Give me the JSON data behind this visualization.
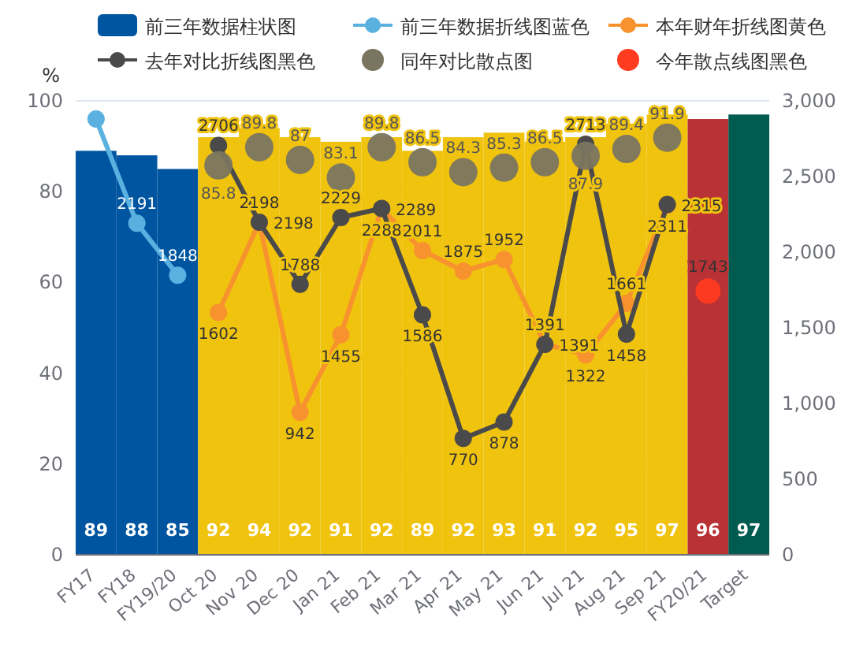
{
  "chart_data": {
    "type": "bar",
    "ylabel": "%",
    "categories": [
      "FY17",
      "FY18",
      "FY19/20",
      "Oct 20",
      "Nov 20",
      "Dec 20",
      "Jan 21",
      "Feb 21",
      "Mar 21",
      "Apr 21",
      "May 21",
      "Jun 21",
      "Jul 21",
      "Aug 21",
      "Sep 21",
      "FY20/21",
      "Target"
    ],
    "ylim": [
      0,
      100
    ],
    "yticks": [
      0,
      20,
      40,
      60,
      80,
      100
    ],
    "y2lim": [
      0,
      3000
    ],
    "y2ticks": [
      0,
      {
        "value": 500,
        "label": "500"
      },
      {
        "value": 1000,
        "label": "1,000"
      },
      {
        "value": 1500,
        "label": "1,500"
      },
      {
        "value": 2000,
        "label": "2,000"
      },
      {
        "value": 2500,
        "label": "2,500"
      },
      {
        "value": 3000,
        "label": "3,000"
      }
    ],
    "grid": "y",
    "legend": "top",
    "marker": "circle",
    "data_labels": true,
    "series": [
      {
        "name": "前三年数据柱状图",
        "color": "#0055a0",
        "colors": [
          "#0055a0",
          "#0055a0",
          "#0055a0",
          "#f0c30f",
          "#f0c30f",
          "#f0c30f",
          "#f0c30f",
          "#f0c30f",
          "#f0c30f",
          "#f0c30f",
          "#f0c30f",
          "#f0c30f",
          "#f0c30f",
          "#f0c30f",
          "#f0c30f",
          "#b83236",
          "#005c50"
        ],
        "values": [
          89,
          88,
          85,
          92,
          94,
          92,
          91,
          92,
          89,
          92,
          93,
          91,
          92,
          95,
          97,
          96,
          97
        ]
      },
      {
        "name": "前三年数据折线图蓝色",
        "type": "line",
        "axis": "y2",
        "color": "#5ab1e0",
        "values": [
          2880,
          2191,
          1848,
          null,
          null,
          null,
          null,
          null,
          null,
          null,
          null,
          null,
          null,
          null,
          null,
          null,
          null
        ],
        "value_labels": [
          null,
          "2191",
          "1848",
          null,
          null,
          null,
          null,
          null,
          null,
          null,
          null,
          null,
          null,
          null,
          null,
          null,
          null
        ]
      },
      {
        "name": "本年财年折线图黄色",
        "type": "line",
        "axis": "y2",
        "color": "#f7922e",
        "values": [
          null,
          null,
          null,
          1602,
          2198,
          942,
          1455,
          2288,
          2011,
          1875,
          1952,
          1391,
          1322,
          1661,
          2311,
          null,
          null
        ]
      },
      {
        "name": "去年对比折线图黑色",
        "type": "line",
        "axis": "y2",
        "color": "#4a4a4a",
        "values": [
          null,
          null,
          null,
          2706,
          2198,
          1788,
          2229,
          2289,
          1586,
          770,
          878,
          1391,
          2713,
          1458,
          2315,
          null,
          null
        ]
      },
      {
        "name": "同年对比散点图",
        "type": "scatter",
        "color": "#7a7560",
        "values": [
          null,
          null,
          null,
          85.8,
          89.8,
          87,
          83.1,
          89.8,
          86.5,
          84.3,
          85.3,
          86.5,
          87.9,
          89.4,
          91.9,
          null,
          null
        ]
      },
      {
        "name": "今年散点线图黑色",
        "type": "scatter",
        "axis": "y2",
        "color": "#ff3b20",
        "values": [
          null,
          null,
          null,
          null,
          null,
          null,
          null,
          null,
          null,
          null,
          null,
          null,
          null,
          null,
          null,
          1743,
          null
        ]
      }
    ]
  }
}
